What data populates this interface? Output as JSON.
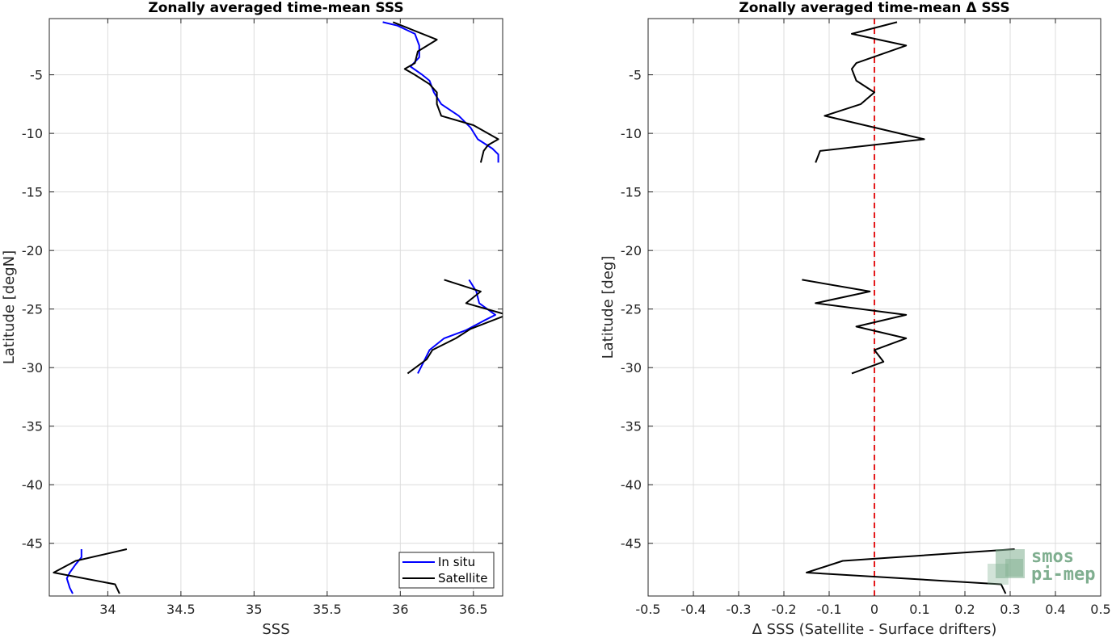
{
  "colors": {
    "in_situ": "#0000ff",
    "satellite": "#000000",
    "zero_line": "#e41a1c",
    "grid": "#dcdcdc",
    "logo": "#7fae8f"
  },
  "logo": {
    "line1": "smos",
    "line2": "pi-mep",
    "icon": "smos-pi-mep-logo"
  },
  "chart_data": [
    {
      "type": "line",
      "title": "Zonally averaged time-mean SSS",
      "xlabel": "SSS",
      "ylabel": "Latitude [degN]",
      "xlim": [
        33.6,
        36.7
      ],
      "ylim": [
        -49.5,
        -0.2
      ],
      "xticks": [
        34,
        34.5,
        35,
        35.5,
        36,
        36.5
      ],
      "xtick_labels": [
        "34",
        "34.5",
        "35",
        "35.5",
        "36",
        "36.5"
      ],
      "yticks": [
        -5,
        -10,
        -15,
        -20,
        -25,
        -30,
        -35,
        -40,
        -45
      ],
      "ytick_labels": [
        "-5",
        "-10",
        "-15",
        "-20",
        "-25",
        "-30",
        "-35",
        "-40",
        "-45"
      ],
      "grid": true,
      "legend_position": "bottom-right",
      "series": [
        {
          "name": "In situ",
          "color_key": "in_situ",
          "segments": [
            [
              [
                35.88,
                -0.5
              ],
              [
                35.98,
                -0.8
              ],
              [
                36.1,
                -1.5
              ],
              [
                36.13,
                -2.5
              ],
              [
                36.13,
                -3.5
              ],
              [
                36.07,
                -4.3
              ],
              [
                36.15,
                -5
              ],
              [
                36.2,
                -5.5
              ],
              [
                36.23,
                -6.5
              ],
              [
                36.28,
                -7.5
              ],
              [
                36.4,
                -8.5
              ],
              [
                36.48,
                -9.5
              ],
              [
                36.53,
                -10.5
              ],
              [
                36.63,
                -11.3
              ],
              [
                36.67,
                -11.8
              ],
              [
                36.67,
                -12.5
              ]
            ],
            [
              [
                36.47,
                -22.5
              ],
              [
                36.52,
                -23.5
              ],
              [
                36.54,
                -24.5
              ],
              [
                36.65,
                -25.5
              ],
              [
                36.57,
                -26
              ],
              [
                36.45,
                -26.8
              ],
              [
                36.3,
                -27.5
              ],
              [
                36.2,
                -28.5
              ],
              [
                36.16,
                -29.5
              ],
              [
                36.12,
                -30.5
              ]
            ],
            [
              [
                33.82,
                -45.5
              ],
              [
                33.82,
                -46.2
              ],
              [
                33.78,
                -46.8
              ],
              [
                33.74,
                -47.5
              ],
              [
                33.72,
                -48
              ],
              [
                33.74,
                -48.8
              ],
              [
                33.76,
                -49.3
              ]
            ]
          ]
        },
        {
          "name": "Satellite",
          "color_key": "satellite",
          "segments": [
            [
              [
                35.95,
                -0.5
              ],
              [
                36.05,
                -1
              ],
              [
                36.25,
                -2
              ],
              [
                36.12,
                -3
              ],
              [
                36.1,
                -4
              ],
              [
                36.03,
                -4.5
              ],
              [
                36.1,
                -5
              ],
              [
                36.2,
                -5.8
              ],
              [
                36.25,
                -6.5
              ],
              [
                36.25,
                -7.5
              ],
              [
                36.28,
                -8.5
              ],
              [
                36.5,
                -9.3
              ],
              [
                36.67,
                -10.5
              ],
              [
                36.6,
                -11
              ],
              [
                36.57,
                -11.5
              ],
              [
                36.55,
                -12.5
              ]
            ],
            [
              [
                36.3,
                -22.5
              ],
              [
                36.55,
                -23.5
              ],
              [
                36.45,
                -24.5
              ],
              [
                36.73,
                -25.5
              ],
              [
                36.48,
                -26.7
              ],
              [
                36.38,
                -27.5
              ],
              [
                36.22,
                -28.5
              ],
              [
                36.18,
                -29.3
              ],
              [
                36.05,
                -30.5
              ]
            ],
            [
              [
                34.13,
                -45.5
              ],
              [
                33.78,
                -46.5
              ],
              [
                33.63,
                -47.5
              ],
              [
                34.05,
                -48.5
              ],
              [
                34.08,
                -49.3
              ]
            ]
          ]
        }
      ]
    },
    {
      "type": "line",
      "title": "Zonally averaged time-mean Δ SSS",
      "xlabel": "Δ SSS (Satellite - Surface drifters)",
      "ylabel": "Latitude [deg]",
      "xlim": [
        -0.5,
        0.5
      ],
      "ylim": [
        -49.5,
        -0.2
      ],
      "xticks": [
        -0.5,
        -0.4,
        -0.3,
        -0.2,
        -0.1,
        0,
        0.1,
        0.2,
        0.3,
        0.4,
        0.5
      ],
      "xtick_labels": [
        "-0.5",
        "-0.4",
        "-0.3",
        "-0.2",
        "-0.1",
        "0",
        "0.1",
        "0.2",
        "0.3",
        "0.4",
        "0.5"
      ],
      "yticks": [
        -5,
        -10,
        -15,
        -20,
        -25,
        -30,
        -35,
        -40,
        -45
      ],
      "ytick_labels": [
        "-5",
        "-10",
        "-15",
        "-20",
        "-25",
        "-30",
        "-35",
        "-40",
        "-45"
      ],
      "grid": true,
      "reference_line": {
        "x": 0,
        "style": "dashed",
        "color_key": "zero_line"
      },
      "series": [
        {
          "color_key": "satellite",
          "segments": [
            [
              [
                0.05,
                -0.5
              ],
              [
                -0.05,
                -1.5
              ],
              [
                0.07,
                -2.5
              ],
              [
                -0.04,
                -4
              ],
              [
                -0.05,
                -4.5
              ],
              [
                -0.04,
                -5.5
              ],
              [
                -0.0,
                -6.5
              ],
              [
                -0.03,
                -7.5
              ],
              [
                -0.11,
                -8.5
              ],
              [
                0.11,
                -10.5
              ],
              [
                -0.12,
                -11.5
              ],
              [
                -0.13,
                -12.5
              ]
            ],
            [
              [
                -0.16,
                -22.5
              ],
              [
                -0.01,
                -23.5
              ],
              [
                -0.13,
                -24.5
              ],
              [
                0.07,
                -25.5
              ],
              [
                -0.04,
                -26.5
              ],
              [
                0.07,
                -27.5
              ],
              [
                0.0,
                -28.5
              ],
              [
                0.02,
                -29.5
              ],
              [
                -0.05,
                -30.5
              ]
            ],
            [
              [
                0.31,
                -45.5
              ],
              [
                -0.07,
                -46.5
              ],
              [
                -0.15,
                -47.5
              ],
              [
                0.28,
                -48.5
              ],
              [
                0.29,
                -49.3
              ]
            ]
          ]
        }
      ]
    }
  ]
}
